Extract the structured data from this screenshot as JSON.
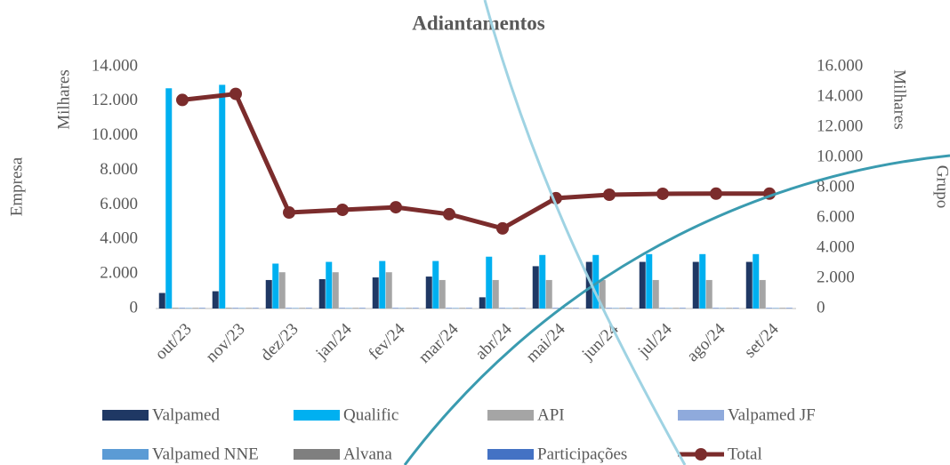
{
  "chart_data": {
    "type": "bar",
    "title": "Adiantamentos",
    "y_label": "Empresa",
    "y_unit": "Milhares",
    "y2_label": "Grupo",
    "y2_unit": "Milhares",
    "categories": [
      "out/23",
      "nov/23",
      "dez/23",
      "jan/24",
      "fev/24",
      "mar/24",
      "abr/24",
      "mai/24",
      "jun/24",
      "jul/24",
      "ago/24",
      "set/24"
    ],
    "ylim": [
      0,
      14000
    ],
    "yticks": [
      0,
      {
        "value": 2000,
        "label": "2.000"
      },
      {
        "value": 4000,
        "label": "4.000"
      },
      {
        "value": 6000,
        "label": "6.000"
      },
      {
        "value": 8000,
        "label": "8.000"
      },
      {
        "value": 10000,
        "label": "10.000"
      },
      {
        "value": 12000,
        "label": "12.000"
      },
      {
        "value": 14000,
        "label": "14.000"
      }
    ],
    "y2lim": [
      0,
      16000
    ],
    "y2ticks": [
      0,
      {
        "value": 2000,
        "label": "2.000"
      },
      {
        "value": 4000,
        "label": "4.000"
      },
      {
        "value": 6000,
        "label": "6.000"
      },
      {
        "value": 8000,
        "label": "8.000"
      },
      {
        "value": 10000,
        "label": "10.000"
      },
      {
        "value": 12000,
        "label": "12.000"
      },
      {
        "value": 14000,
        "label": "14.000"
      },
      {
        "value": 16000,
        "label": "16.000"
      }
    ],
    "series": [
      {
        "name": "Valpamed",
        "color": "#1f3864",
        "values": [
          900,
          1000,
          1650,
          1700,
          1800,
          1850,
          650,
          2450,
          2700,
          2700,
          2700,
          2700
        ]
      },
      {
        "name": "Qualific",
        "color": "#00b0f0",
        "values": [
          12750,
          12950,
          2600,
          2700,
          2750,
          2750,
          3000,
          3100,
          3100,
          3150,
          3150,
          3150
        ]
      },
      {
        "name": "API",
        "color": "#a5a5a5",
        "values": [
          50,
          50,
          2100,
          2100,
          2100,
          1650,
          1650,
          1650,
          1650,
          1650,
          1650,
          1650
        ]
      },
      {
        "name": "Valpamed JF",
        "color": "#8faadc",
        "values": [
          50,
          50,
          50,
          50,
          50,
          50,
          50,
          50,
          50,
          50,
          50,
          50
        ]
      },
      {
        "name": "Valpamed NNE",
        "color": "#5b9bd5",
        "values": [
          30,
          30,
          30,
          30,
          30,
          30,
          30,
          30,
          30,
          30,
          30,
          30
        ]
      },
      {
        "name": "Alvana",
        "color": "#7f7f7f",
        "values": [
          30,
          30,
          30,
          30,
          30,
          30,
          30,
          30,
          30,
          30,
          30,
          30
        ]
      },
      {
        "name": "Participações",
        "color": "#4472c4",
        "values": [
          30,
          30,
          30,
          30,
          30,
          30,
          30,
          30,
          30,
          30,
          30,
          30
        ]
      },
      {
        "name": "Total",
        "color": "#7b2c2c",
        "type": "line",
        "axis": "y2",
        "values": [
          13800,
          14200,
          6350,
          6530,
          6700,
          6240,
          5300,
          7300,
          7530,
          7590,
          7600,
          7600
        ]
      }
    ]
  }
}
